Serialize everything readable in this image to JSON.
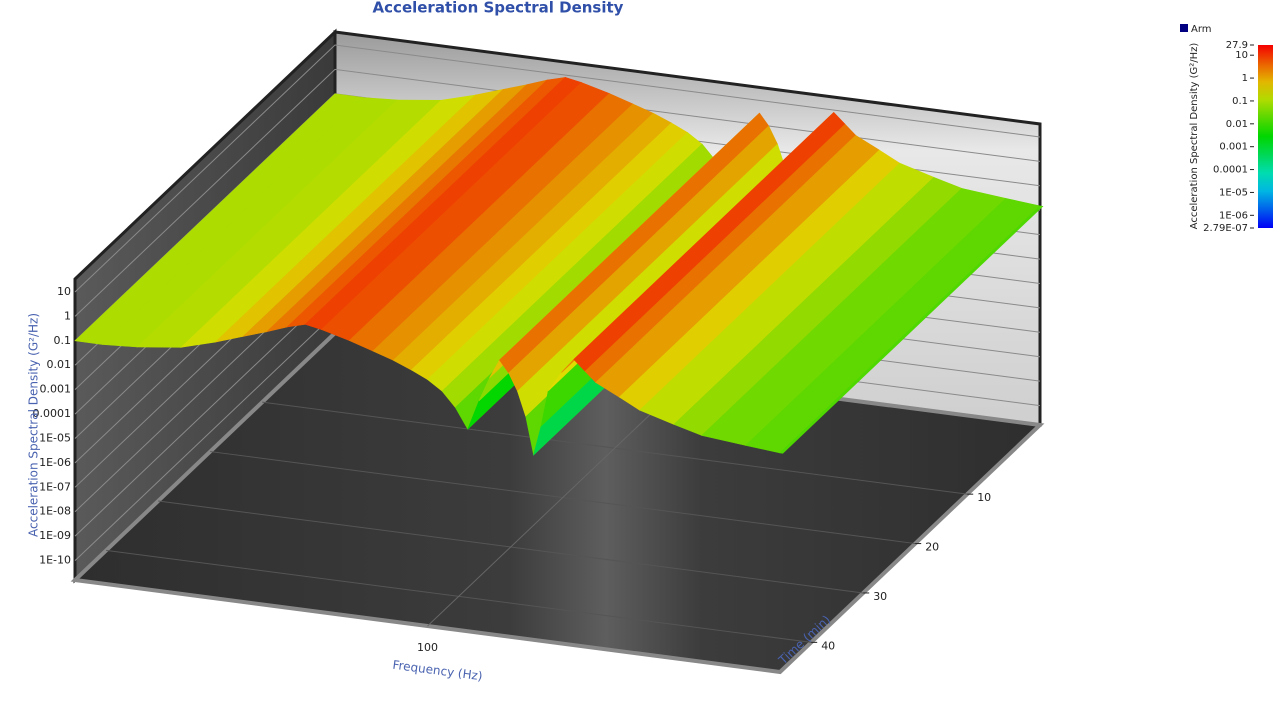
{
  "chart_data": {
    "type": "surface3d",
    "title": "Acceleration Spectral Density",
    "x_label": "Frequency (Hz)",
    "z_label": "Acceleration Spectral Density (G²/Hz)",
    "time_label": "Time (min)",
    "xlim": [
      10,
      1000
    ],
    "xscale": "log",
    "xticks": [
      100
    ],
    "zlim": [
      1.6e-11,
      34
    ],
    "zscale": "log",
    "zticks": [
      10,
      1,
      0.1,
      0.01,
      0.001,
      0.0001,
      {
        "value": 1e-05,
        "label": "1E-05"
      },
      {
        "value": 1e-06,
        "label": "1E-06"
      },
      {
        "value": 1e-07,
        "label": "1E-07"
      },
      {
        "value": 1e-08,
        "label": "1E-08"
      },
      {
        "value": 1e-09,
        "label": "1E-09"
      },
      {
        "value": 1e-10,
        "label": "1E-10"
      }
    ],
    "tlim": [
      -4,
      46
    ],
    "tticks": [
      10,
      20,
      30,
      40
    ],
    "colorbar_label": "Acceleration Spectral Density (G²/Hz)",
    "colorbar_lim": [
      2.79e-07,
      27.9
    ],
    "colorbar_ticks": [
      27.9,
      10,
      1,
      0.1,
      0.01,
      0.001,
      0.0001,
      {
        "value": 1e-05,
        "label": "1E-05"
      },
      {
        "value": 1e-06,
        "label": "1E-06"
      },
      {
        "value": 2.79e-07,
        "label": "2.79E-07"
      }
    ],
    "series": [
      {
        "name": "Arm",
        "color": "#000080",
        "x": [
          10,
          12,
          15,
          20,
          25,
          30,
          35,
          40,
          45,
          50,
          60,
          70,
          80,
          90,
          100,
          110,
          120,
          130,
          140,
          150,
          160,
          170,
          180,
          190,
          200,
          210,
          220,
          240,
          260,
          280,
          300,
          350,
          400,
          500,
          600,
          800,
          1000
        ],
        "values": [
          0.1,
          0.1,
          0.12,
          0.2,
          0.5,
          1.2,
          2.5,
          5,
          8,
          6,
          3,
          1.5,
          0.8,
          0.4,
          0.2,
          0.08,
          0.02,
          0.003,
          0.05,
          0.5,
          3,
          1,
          0.2,
          0.02,
          0.0006,
          0.01,
          0.3,
          2,
          8,
          3,
          1.2,
          0.4,
          0.15,
          0.06,
          0.03,
          0.02,
          0.015
        ]
      }
    ]
  }
}
